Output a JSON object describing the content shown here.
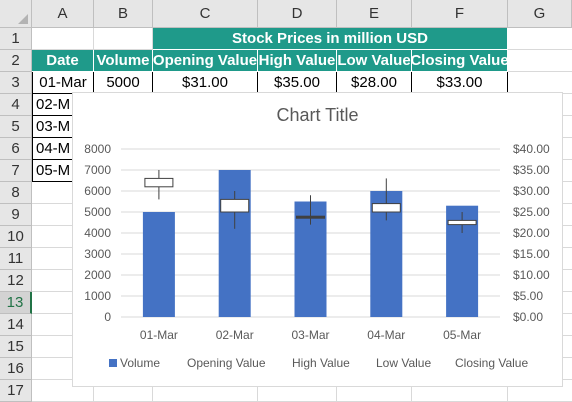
{
  "columns": [
    "A",
    "B",
    "C",
    "D",
    "E",
    "F",
    "G"
  ],
  "rows": [
    "1",
    "2",
    "3",
    "4",
    "5",
    "6",
    "7",
    "8",
    "9",
    "10",
    "11",
    "12",
    "13",
    "14",
    "15",
    "16",
    "17"
  ],
  "selected_row": "13",
  "sheet": {
    "banner": "Stock Prices in million USD",
    "headers": [
      "Date",
      "Volume",
      "Opening Value",
      "High Value",
      "Low Value",
      "Closing Value"
    ],
    "row3": [
      "01-Mar",
      "5000",
      "$31.00",
      "$35.00",
      "$28.00",
      "$33.00"
    ],
    "partial_dates": [
      "02-M",
      "03-M",
      "04-M",
      "05-M"
    ]
  },
  "colors": {
    "header_fill": "#1f9a8a",
    "volume_bar": "#4472c4",
    "selected_row": "#217346"
  },
  "chart_data": {
    "type": "bar",
    "title": "Chart Title",
    "categories": [
      "01-Mar",
      "02-Mar",
      "03-Mar",
      "04-Mar",
      "05-Mar"
    ],
    "y_ticks": [
      "0",
      "1000",
      "2000",
      "3000",
      "4000",
      "5000",
      "6000",
      "7000",
      "8000"
    ],
    "y2_ticks": [
      "$0.00",
      "$5.00",
      "$10.00",
      "$15.00",
      "$20.00",
      "$25.00",
      "$30.00",
      "$35.00",
      "$40.00"
    ],
    "ylim": [
      0,
      8000
    ],
    "y2lim": [
      0,
      40
    ],
    "series": [
      {
        "name": "Volume",
        "values": [
          5000,
          7000,
          5500,
          6000,
          5300
        ]
      },
      {
        "name": "Opening Value",
        "values": [
          31,
          25,
          24,
          25,
          22
        ]
      },
      {
        "name": "High Value",
        "values": [
          35,
          30,
          29,
          33,
          25
        ]
      },
      {
        "name": "Low Value",
        "values": [
          28,
          21,
          22,
          23,
          20
        ]
      },
      {
        "name": "Closing Value",
        "values": [
          33,
          28,
          24,
          27,
          23
        ]
      }
    ],
    "legend": [
      "Volume",
      "Opening Value",
      "High Value",
      "Low Value",
      "Closing Value"
    ],
    "legend_position": "bottom",
    "grid": true
  }
}
